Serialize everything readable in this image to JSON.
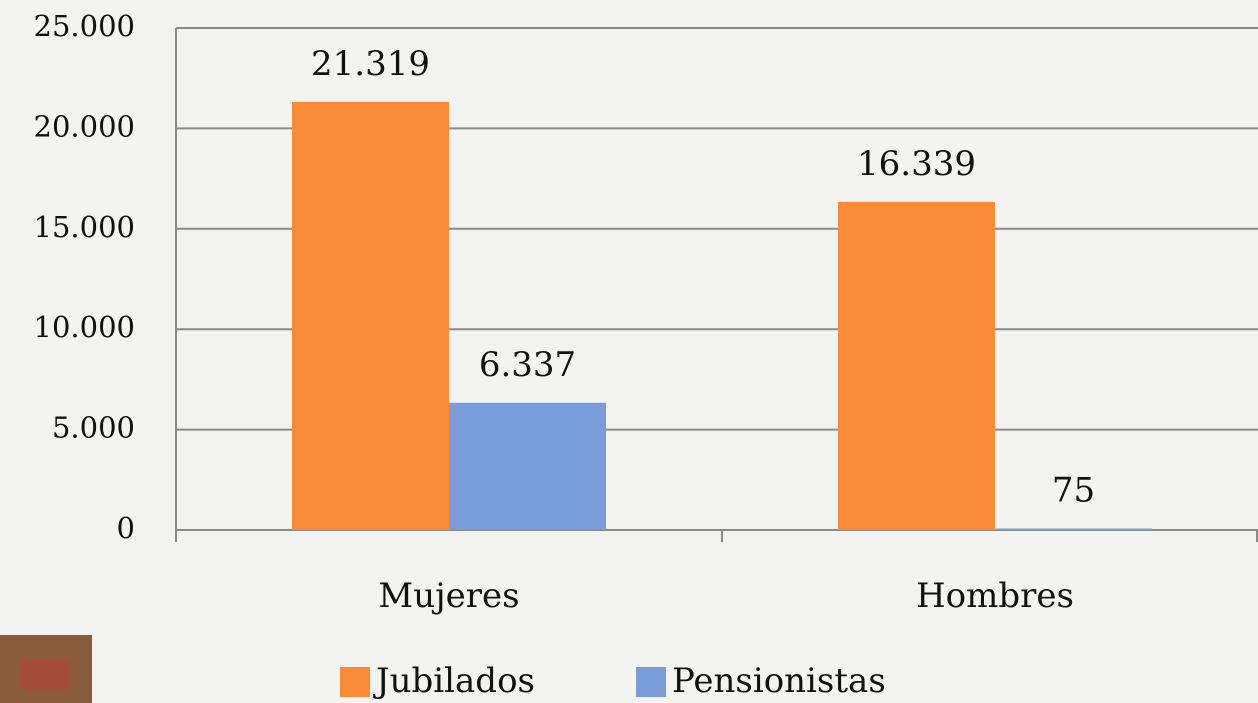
{
  "chart_data": {
    "type": "bar",
    "categories": [
      "Mujeres",
      "Hombres"
    ],
    "series": [
      {
        "name": "Jubilados",
        "color": "#f98a38",
        "values": [
          21319,
          16339
        ],
        "value_labels": [
          "21.319",
          "16.339"
        ]
      },
      {
        "name": "Pensionistas",
        "color": "#7a9cd9",
        "values": [
          6337,
          75
        ],
        "value_labels": [
          "6.337",
          "75"
        ]
      }
    ],
    "ylim": [
      0,
      25000
    ],
    "yticks": [
      {
        "value": 0,
        "label": "0"
      },
      {
        "value": 5000,
        "label": "5.000"
      },
      {
        "value": 10000,
        "label": "10.000"
      },
      {
        "value": 15000,
        "label": "15.000"
      },
      {
        "value": 20000,
        "label": "20.000"
      },
      {
        "value": 25000,
        "label": "25.000"
      }
    ],
    "grid": true,
    "legend": "bottom"
  }
}
